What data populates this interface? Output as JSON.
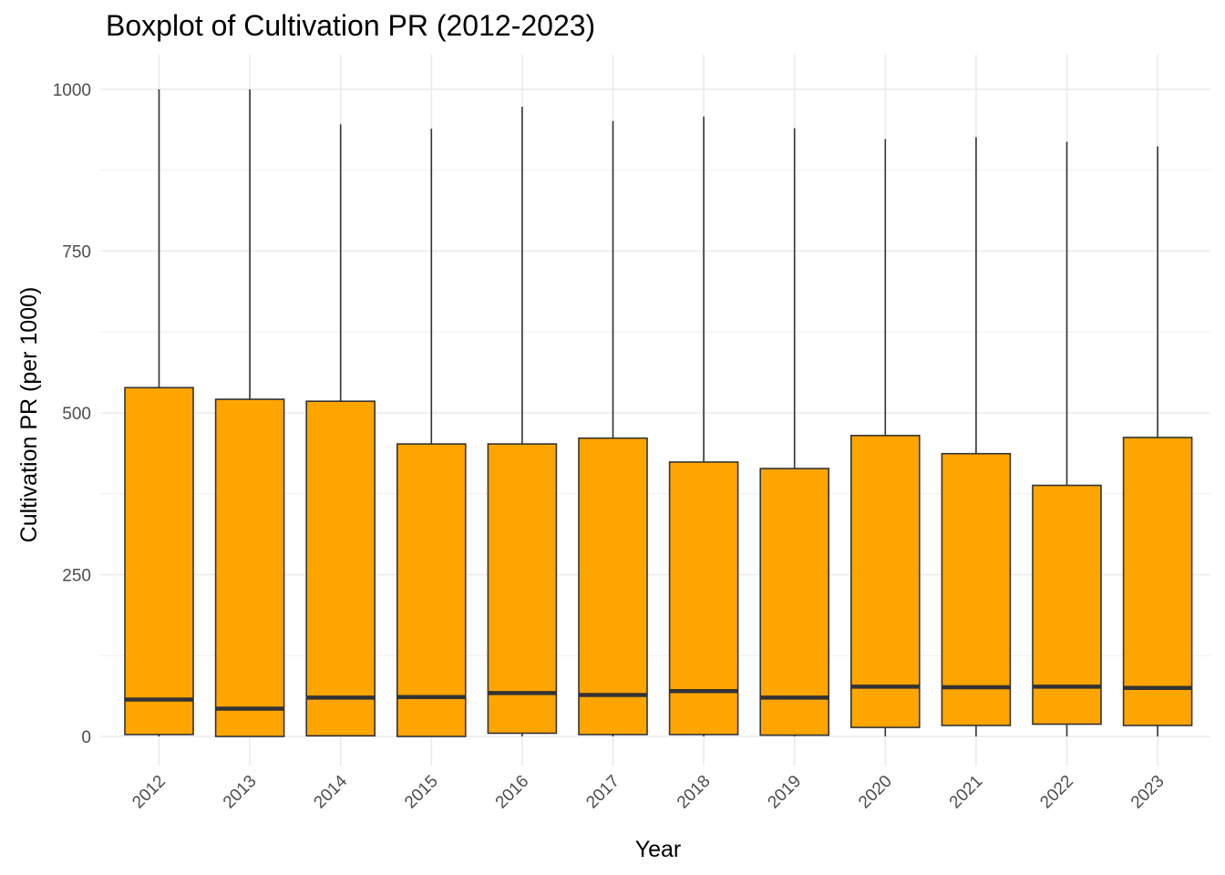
{
  "chart_data": {
    "type": "box",
    "title": "Boxplot of Cultivation PR (2012-2023)",
    "xlabel": "Year",
    "ylabel": "Cultivation PR (per 1000)",
    "ylim": [
      -25,
      1050
    ],
    "yticks": [
      0,
      250,
      500,
      750,
      1000
    ],
    "grid": true,
    "legend": "none",
    "fill_color": "#FFA500",
    "stroke_color": "#333333",
    "categories": [
      "2012",
      "2013",
      "2014",
      "2015",
      "2016",
      "2017",
      "2018",
      "2019",
      "2020",
      "2021",
      "2022",
      "2023"
    ],
    "boxes": [
      {
        "x": "2012",
        "min": 0,
        "q1": 3,
        "median": 57,
        "q3": 539,
        "max": 1000
      },
      {
        "x": "2013",
        "min": 0,
        "q1": 0,
        "median": 43,
        "q3": 521,
        "max": 1000
      },
      {
        "x": "2014",
        "min": 0,
        "q1": 1,
        "median": 60,
        "q3": 518,
        "max": 946
      },
      {
        "x": "2015",
        "min": 0,
        "q1": 0,
        "median": 61,
        "q3": 452,
        "max": 939
      },
      {
        "x": "2016",
        "min": 0,
        "q1": 5,
        "median": 67,
        "q3": 452,
        "max": 973
      },
      {
        "x": "2017",
        "min": 0,
        "q1": 3,
        "median": 64,
        "q3": 461,
        "max": 951
      },
      {
        "x": "2018",
        "min": 0,
        "q1": 3,
        "median": 70,
        "q3": 424,
        "max": 958
      },
      {
        "x": "2019",
        "min": 0,
        "q1": 2,
        "median": 60,
        "q3": 414,
        "max": 940
      },
      {
        "x": "2020",
        "min": 0,
        "q1": 14,
        "median": 77,
        "q3": 465,
        "max": 923
      },
      {
        "x": "2021",
        "min": 0,
        "q1": 17,
        "median": 76,
        "q3": 437,
        "max": 926
      },
      {
        "x": "2022",
        "min": 0,
        "q1": 19,
        "median": 77,
        "q3": 388,
        "max": 919
      },
      {
        "x": "2023",
        "min": 0,
        "q1": 17,
        "median": 75,
        "q3": 462,
        "max": 912
      }
    ]
  }
}
